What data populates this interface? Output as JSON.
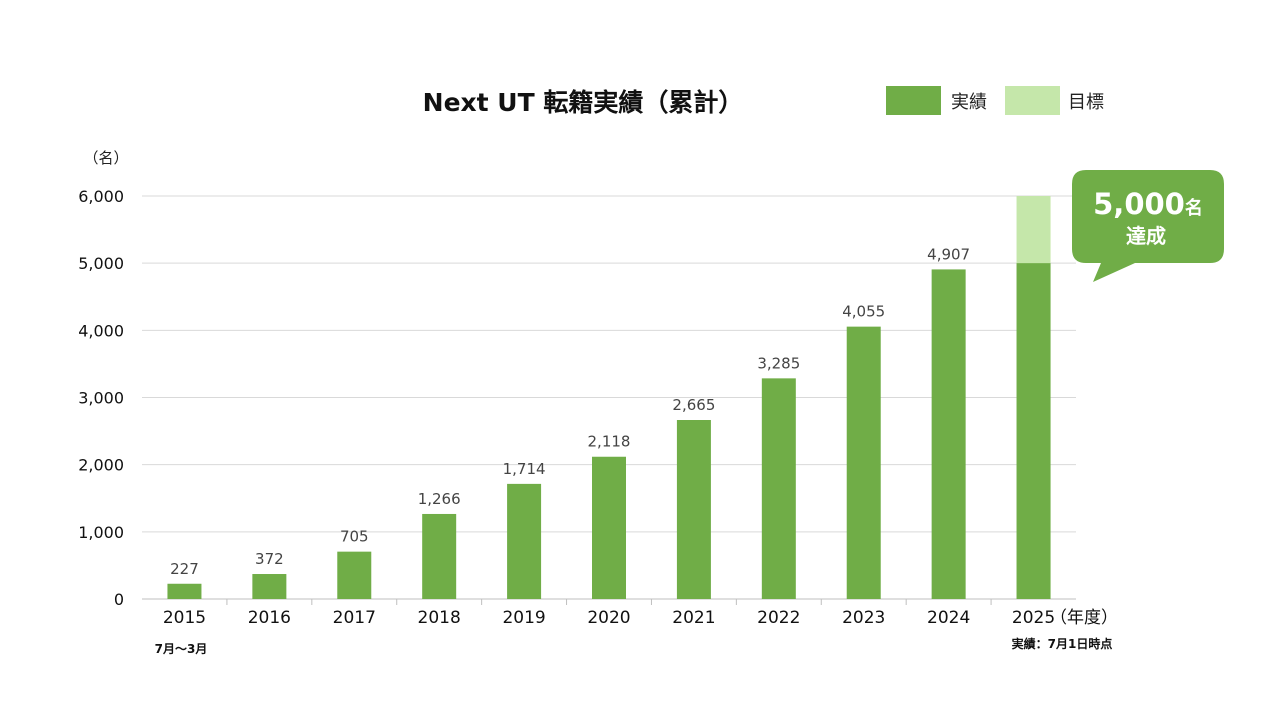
{
  "chart_data": {
    "type": "bar",
    "title": "Next UT 転籍実績（累計）",
    "ylabel": "（名）",
    "xlabel": "（年度）",
    "ylim": [
      0,
      6000
    ],
    "yticks": [
      "0",
      "1,000",
      "2,000",
      "3,000",
      "4,000",
      "5,000",
      "6,000"
    ],
    "ytick_values": [
      0,
      1000,
      2000,
      3000,
      4000,
      5000,
      6000
    ],
    "grid": true,
    "legend_position": "top-right",
    "categories": [
      "2015",
      "2016",
      "2017",
      "2018",
      "2019",
      "2020",
      "2021",
      "2022",
      "2023",
      "2024",
      "2025"
    ],
    "series": [
      {
        "name": "実績",
        "color": "#70ad47",
        "values": [
          227,
          372,
          705,
          1266,
          1714,
          2118,
          2665,
          3285,
          4055,
          4907,
          5000
        ],
        "labels": [
          "227",
          "372",
          "705",
          "1,266",
          "1,714",
          "2,118",
          "2,665",
          "3,285",
          "4,055",
          "4,907",
          ""
        ]
      },
      {
        "name": "目標",
        "color": "#c5e7aa",
        "values": [
          null,
          null,
          null,
          null,
          null,
          null,
          null,
          null,
          null,
          null,
          6000
        ]
      }
    ],
    "notes": {
      "first_year": "7月～3月",
      "last_year": "実績：7月1日時点"
    },
    "callout": {
      "number": "5,000",
      "unit": "名",
      "text": "達成",
      "color": "#70ad47"
    }
  }
}
